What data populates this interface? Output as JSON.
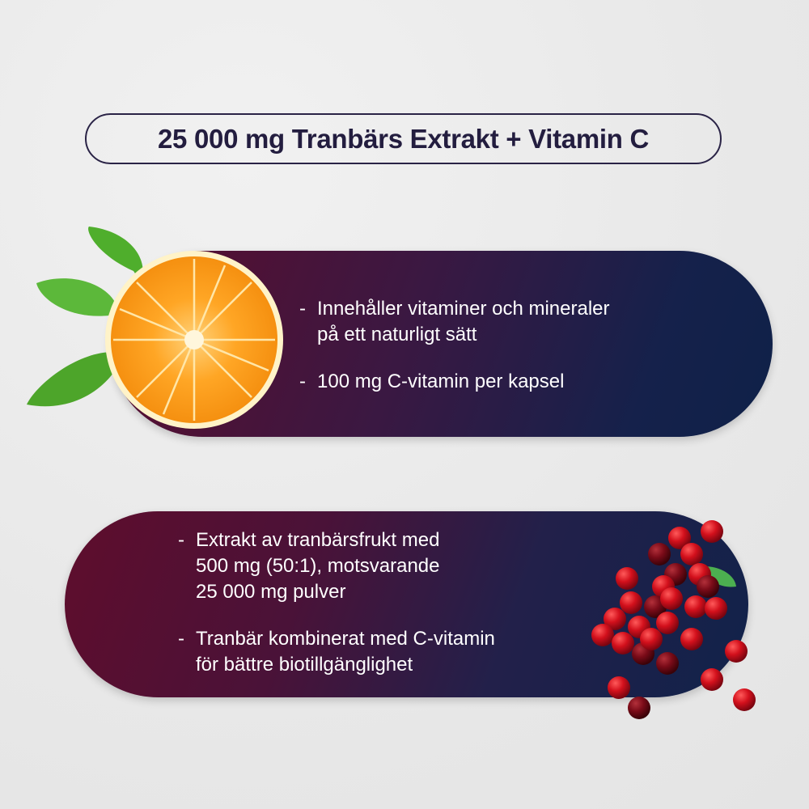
{
  "title": "25 000 mg Tranbärs Extrakt + Vitamin C",
  "vitamin_c_card": {
    "icon": "orange-slice-icon",
    "items": [
      {
        "bullet": "-",
        "text": "Innehåller vitaminer och mineraler\npå ett naturligt sätt"
      },
      {
        "bullet": "-",
        "text": "100 mg C-vitamin per kapsel"
      }
    ]
  },
  "cranberry_card": {
    "icon": "cranberries-icon",
    "items": [
      {
        "bullet": "-",
        "text": "Extrakt av tranbärsfrukt med\n500 mg (50:1), motsvarande\n25 000 mg pulver"
      },
      {
        "bullet": "-",
        "text": "Tranbär kombinerat med C-vitamin\nför bättre biotillgänglighet"
      }
    ]
  },
  "colors": {
    "title": "#231d3f",
    "maroon": "#5c0d2d",
    "navy": "#0f2148",
    "background": "#ebebeb"
  }
}
